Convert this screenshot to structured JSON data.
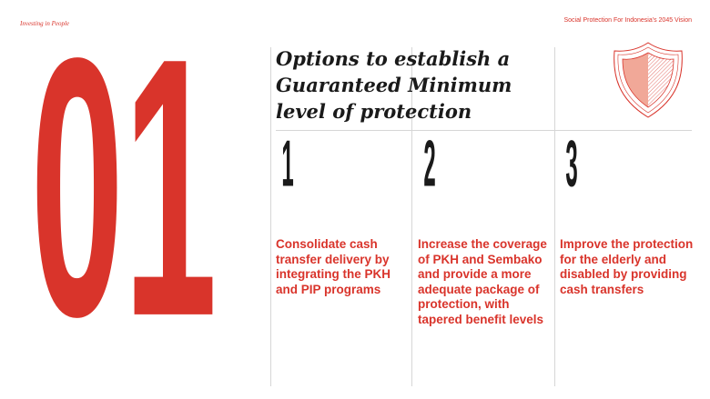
{
  "header": {
    "left": "Investing in People",
    "right": "Social Protection For Indonesia's 2045 Vision"
  },
  "section_number": "01",
  "title": "Options to establish a Guaranteed Minimum level of protection",
  "options": [
    {
      "number": "1",
      "text": "Consolidate cash transfer delivery by integrating the PKH and PIP programs"
    },
    {
      "number": "2",
      "text": "Increase the coverage of PKH and Sembako and provide a more adequate package of protection, with tapered benefit levels"
    },
    {
      "number": "3",
      "text": "Improve the protection for the elderly and disabled by providing cash transfers"
    }
  ],
  "icons": {
    "emblem": "shield-icon"
  },
  "colors": {
    "accent": "#d9342b",
    "text": "#1a1a1a",
    "shield_fill": "#f1a898",
    "rule": "#d6d6d6"
  }
}
